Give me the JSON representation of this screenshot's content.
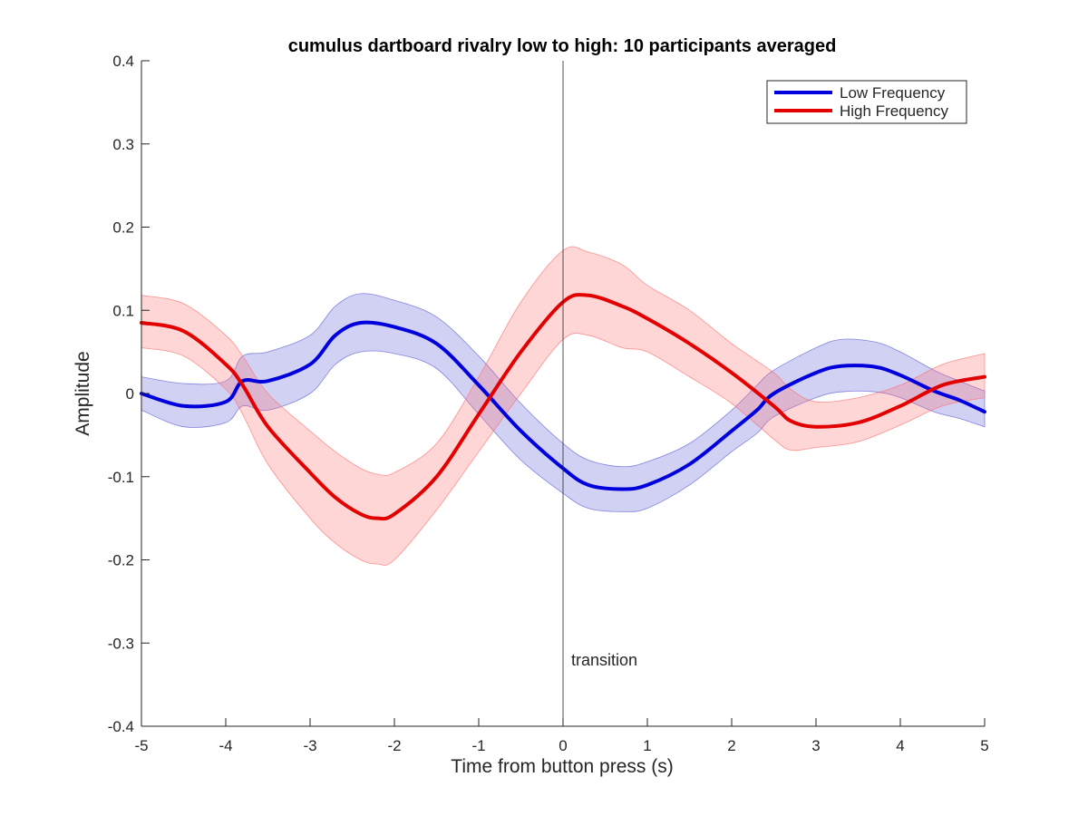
{
  "chart_data": {
    "type": "line",
    "title": "cumulus dartboard rivalry low to high: 10 participants averaged",
    "xlabel": "Time from button press (s)",
    "ylabel": "Amplitude",
    "xlim": [
      -5,
      5
    ],
    "ylim": [
      -0.4,
      0.4
    ],
    "xticks": [
      "-5",
      "-4",
      "-3",
      "-2",
      "-1",
      "0",
      "1",
      "2",
      "3",
      "4",
      "5"
    ],
    "yticks": [
      "-0.4",
      "-0.3",
      "-0.2",
      "-0.1",
      "0",
      "0.1",
      "0.2",
      "0.3",
      "0.4"
    ],
    "grid": false,
    "legend_position": "top-right",
    "annotation": {
      "text": "transition",
      "x": 0,
      "y": -0.32
    },
    "vertical_line_x": 0,
    "series": [
      {
        "name": "Low Frequency",
        "color": "#0000dd",
        "band_color": "#5a5ad6",
        "x": [
          -5,
          -4.5,
          -4,
          -3.8,
          -3.5,
          -3,
          -2.7,
          -2.4,
          -2,
          -1.5,
          -1,
          -0.5,
          0,
          0.3,
          0.7,
          1,
          1.5,
          2,
          2.3,
          2.5,
          3,
          3.3,
          3.7,
          4,
          4.4,
          4.7,
          5
        ],
        "y": [
          0,
          -0.015,
          -0.01,
          0.015,
          0.015,
          0.035,
          0.07,
          0.085,
          0.08,
          0.06,
          0.01,
          -0.045,
          -0.09,
          -0.11,
          -0.115,
          -0.11,
          -0.085,
          -0.045,
          -0.02,
          0,
          0.025,
          0.033,
          0.032,
          0.022,
          0.003,
          -0.008,
          -0.022
        ],
        "upper": [
          0.02,
          0.012,
          0.015,
          0.045,
          0.05,
          0.07,
          0.105,
          0.12,
          0.112,
          0.092,
          0.045,
          -0.012,
          -0.06,
          -0.08,
          -0.088,
          -0.082,
          -0.06,
          -0.02,
          0.01,
          0.028,
          0.055,
          0.065,
          0.062,
          0.05,
          0.028,
          0.015,
          0.003
        ],
        "lower": [
          -0.02,
          -0.04,
          -0.035,
          -0.015,
          -0.02,
          0,
          0.035,
          0.05,
          0.048,
          0.03,
          -0.025,
          -0.08,
          -0.12,
          -0.138,
          -0.142,
          -0.138,
          -0.11,
          -0.07,
          -0.048,
          -0.028,
          -0.005,
          0.002,
          0.002,
          -0.005,
          -0.022,
          -0.03,
          -0.04
        ]
      },
      {
        "name": "High Frequency",
        "color": "#e30000",
        "band_color": "#ff6b6b",
        "x": [
          -5,
          -4.5,
          -4,
          -3.8,
          -3.5,
          -3,
          -2.7,
          -2.4,
          -2.2,
          -2,
          -1.5,
          -1,
          -0.5,
          0,
          0.3,
          0.7,
          1,
          1.5,
          2,
          2.5,
          2.7,
          3,
          3.5,
          4,
          4.5,
          5
        ],
        "y": [
          0.085,
          0.075,
          0.035,
          0.01,
          -0.04,
          -0.095,
          -0.125,
          -0.145,
          -0.15,
          -0.145,
          -0.1,
          -0.025,
          0.05,
          0.11,
          0.118,
          0.105,
          0.09,
          0.06,
          0.025,
          -0.015,
          -0.033,
          -0.04,
          -0.035,
          -0.015,
          0.01,
          0.02
        ],
        "upper": [
          0.118,
          0.108,
          0.07,
          0.045,
          0,
          -0.045,
          -0.07,
          -0.09,
          -0.097,
          -0.095,
          -0.06,
          0.02,
          0.11,
          0.172,
          0.17,
          0.155,
          0.13,
          0.1,
          0.06,
          0.025,
          0.005,
          -0.01,
          -0.005,
          0.01,
          0.035,
          0.048
        ],
        "lower": [
          0.055,
          0.045,
          0.005,
          -0.025,
          -0.085,
          -0.15,
          -0.18,
          -0.2,
          -0.205,
          -0.2,
          -0.14,
          -0.07,
          0,
          0.065,
          0.07,
          0.055,
          0.05,
          0.02,
          -0.012,
          -0.055,
          -0.068,
          -0.065,
          -0.058,
          -0.038,
          -0.015,
          -0.005
        ]
      }
    ]
  }
}
